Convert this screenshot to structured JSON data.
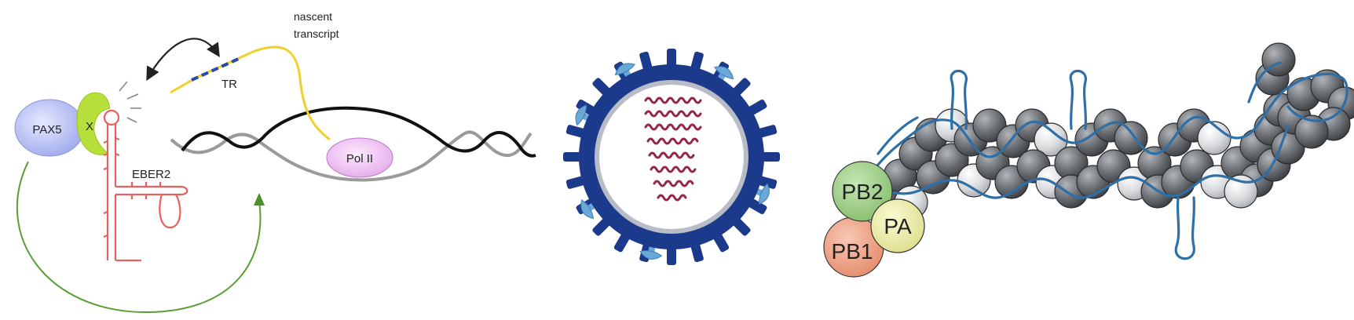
{
  "panel1": {
    "labels": {
      "pax5": "PAX5",
      "x": "X",
      "eber2": "EBER2",
      "nascent_line1": "nascent",
      "nascent_line2": "transcript",
      "tr": "TR",
      "polii": "Pol II"
    }
  },
  "panel3": {
    "labels": {
      "pb2": "PB2",
      "pa": "PA",
      "pb1": "PB1"
    }
  },
  "colors": {
    "rna_red": "#e8605e",
    "pax5_fill": "#b8c0f0",
    "x_fill": "#b8e03c",
    "transcript": "#f0d02a",
    "tr_mark": "#2a4aa8",
    "polii_fill": "#f1c6f4",
    "feedback_arrow": "#5a9e34",
    "virion_blue": "#1c3a8c",
    "glyco_blue": "#6aa8d8",
    "vrna": "#94264e",
    "sphere_dark": "#5e6166",
    "sphere_light": "#d6d8db",
    "rna_strand": "#2f6fa5",
    "pb2_fill": "#9fce85",
    "pa_fill": "#eaeaa0",
    "pb1_fill": "#ee9f85"
  }
}
